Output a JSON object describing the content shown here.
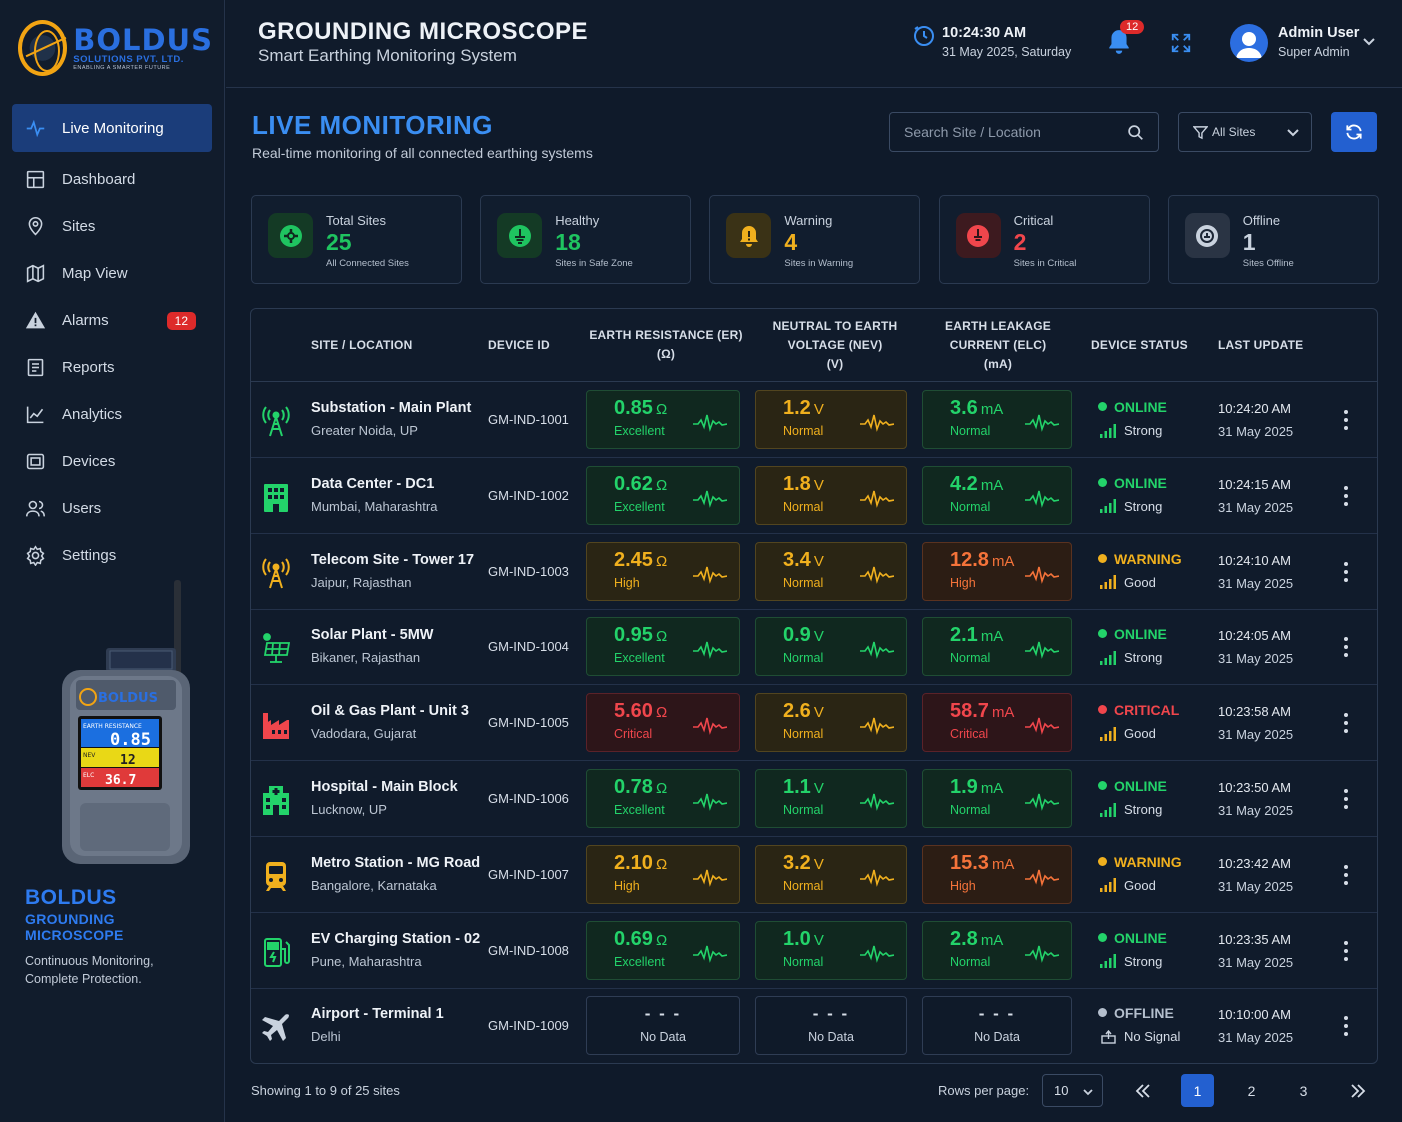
{
  "brand": {
    "name": "BOLDUS",
    "sub": "SOLUTIONS PVT. LTD.",
    "tagline": "ENABLING A SMARTER FUTURE"
  },
  "header": {
    "title": "GROUNDING MICROSCOPE",
    "subtitle": "Smart Earthing Monitoring System",
    "time": "10:24:30 AM",
    "date": "31 May 2025, Saturday",
    "notif_count": "12",
    "user_name": "Admin User",
    "user_role": "Super Admin"
  },
  "sidebar": {
    "items": [
      {
        "label": "Live Monitoring",
        "icon": "pulse-icon"
      },
      {
        "label": "Dashboard",
        "icon": "dashboard-icon"
      },
      {
        "label": "Sites",
        "icon": "location-pin-icon"
      },
      {
        "label": "Map View",
        "icon": "map-icon"
      },
      {
        "label": "Alarms",
        "icon": "alert-triangle-icon",
        "badge": "12"
      },
      {
        "label": "Reports",
        "icon": "report-icon"
      },
      {
        "label": "Analytics",
        "icon": "chart-icon"
      },
      {
        "label": "Devices",
        "icon": "device-icon"
      },
      {
        "label": "Users",
        "icon": "users-icon"
      },
      {
        "label": "Settings",
        "icon": "gear-icon"
      }
    ],
    "device_screen": {
      "brand": "BOLDUS",
      "line1": "EARTH RESISTANCE",
      "v1": "0.85",
      "line2": "NEV",
      "v2": "12",
      "line3": "ELC",
      "v3": "36.7"
    },
    "promo": {
      "title": "BOLDUS",
      "subtitle": "GROUNDING MICROSCOPE",
      "text1": "Continuous Monitoring,",
      "text2": "Complete Protection."
    }
  },
  "page": {
    "title": "LIVE MONITORING",
    "description": "Real-time monitoring of all connected earthing systems",
    "search_placeholder": "Search Site / Location",
    "filter_label": "All Sites"
  },
  "stats": [
    {
      "label": "Total Sites",
      "value": "25",
      "sub": "All Connected Sites",
      "color": "#1fc460",
      "icon": "plus-circle-icon"
    },
    {
      "label": "Healthy",
      "value": "18",
      "sub": "Sites in Safe Zone",
      "color": "#1fc460",
      "icon": "earth-symbol-icon"
    },
    {
      "label": "Warning",
      "value": "4",
      "sub": "Sites in Warning",
      "color": "#f0b01e",
      "icon": "warning-bell-icon"
    },
    {
      "label": "Critical",
      "value": "2",
      "sub": "Sites in Critical",
      "color": "#f0464c",
      "icon": "critical-icon"
    },
    {
      "label": "Offline",
      "value": "1",
      "sub": "Sites Offline",
      "color": "#c9d2de",
      "icon": "offline-icon"
    }
  ],
  "table": {
    "headers": {
      "site": "SITE / LOCATION",
      "device": "DEVICE ID",
      "er1": "EARTH RESISTANCE (ER)",
      "er2": "(Ω)",
      "nev1": "NEUTRAL TO EARTH",
      "nev2": "VOLTAGE (NEV)",
      "nev3": "(V)",
      "elc1": "EARTH LEAKAGE",
      "elc2": "CURRENT (ELC)",
      "elc3": "(mA)",
      "status": "DEVICE STATUS",
      "update": "LAST UPDATE"
    },
    "rows": [
      {
        "icon": "tower-icon",
        "icon_color": "#23d36a",
        "name": "Substation - Main Plant",
        "location": "Greater Noida, UP",
        "device": "GM-IND-1001",
        "er": {
          "v": "0.85",
          "u": "Ω",
          "l": "Excellent",
          "c": "g"
        },
        "nev": {
          "v": "1.2",
          "u": "V",
          "l": "Normal",
          "c": "y"
        },
        "elc": {
          "v": "3.6",
          "u": "mA",
          "l": "Normal",
          "c": "g"
        },
        "status": "ONLINE",
        "status_color": "#23d36a",
        "signal": "Strong",
        "time": "10:24:20 AM",
        "date": "31 May 2025"
      },
      {
        "icon": "building-icon",
        "icon_color": "#23d36a",
        "name": "Data Center - DC1",
        "location": "Mumbai, Maharashtra",
        "device": "GM-IND-1002",
        "er": {
          "v": "0.62",
          "u": "Ω",
          "l": "Excellent",
          "c": "g"
        },
        "nev": {
          "v": "1.8",
          "u": "V",
          "l": "Normal",
          "c": "y"
        },
        "elc": {
          "v": "4.2",
          "u": "mA",
          "l": "Normal",
          "c": "g"
        },
        "status": "ONLINE",
        "status_color": "#23d36a",
        "signal": "Strong",
        "time": "10:24:15 AM",
        "date": "31 May 2025"
      },
      {
        "icon": "tower-icon",
        "icon_color": "#f0b01e",
        "name": "Telecom Site - Tower 17",
        "location": "Jaipur, Rajasthan",
        "device": "GM-IND-1003",
        "er": {
          "v": "2.45",
          "u": "Ω",
          "l": "High",
          "c": "y"
        },
        "nev": {
          "v": "3.4",
          "u": "V",
          "l": "Normal",
          "c": "y"
        },
        "elc": {
          "v": "12.8",
          "u": "mA",
          "l": "High",
          "c": "o"
        },
        "status": "WARNING",
        "status_color": "#f0b01e",
        "signal": "Good",
        "time": "10:24:10 AM",
        "date": "31 May 2025"
      },
      {
        "icon": "solar-panel-icon",
        "icon_color": "#23d36a",
        "name": "Solar Plant - 5MW",
        "location": "Bikaner, Rajasthan",
        "device": "GM-IND-1004",
        "er": {
          "v": "0.95",
          "u": "Ω",
          "l": "Excellent",
          "c": "g"
        },
        "nev": {
          "v": "0.9",
          "u": "V",
          "l": "Normal",
          "c": "g"
        },
        "elc": {
          "v": "2.1",
          "u": "mA",
          "l": "Normal",
          "c": "g"
        },
        "status": "ONLINE",
        "status_color": "#23d36a",
        "signal": "Strong",
        "time": "10:24:05 AM",
        "date": "31 May 2025"
      },
      {
        "icon": "factory-icon",
        "icon_color": "#f0464c",
        "name": "Oil & Gas Plant - Unit 3",
        "location": "Vadodara, Gujarat",
        "device": "GM-IND-1005",
        "er": {
          "v": "5.60",
          "u": "Ω",
          "l": "Critical",
          "c": "r"
        },
        "nev": {
          "v": "2.6",
          "u": "V",
          "l": "Normal",
          "c": "y"
        },
        "elc": {
          "v": "58.7",
          "u": "mA",
          "l": "Critical",
          "c": "r"
        },
        "status": "CRITICAL",
        "status_color": "#f0464c",
        "signal": "Good",
        "time": "10:23:58 AM",
        "date": "31 May 2025"
      },
      {
        "icon": "hospital-icon",
        "icon_color": "#23d36a",
        "name": "Hospital - Main Block",
        "location": "Lucknow, UP",
        "device": "GM-IND-1006",
        "er": {
          "v": "0.78",
          "u": "Ω",
          "l": "Excellent",
          "c": "g"
        },
        "nev": {
          "v": "1.1",
          "u": "V",
          "l": "Normal",
          "c": "g"
        },
        "elc": {
          "v": "1.9",
          "u": "mA",
          "l": "Normal",
          "c": "g"
        },
        "status": "ONLINE",
        "status_color": "#23d36a",
        "signal": "Strong",
        "time": "10:23:50 AM",
        "date": "31 May 2025"
      },
      {
        "icon": "train-icon",
        "icon_color": "#f0b01e",
        "name": "Metro Station - MG Road",
        "location": "Bangalore, Karnataka",
        "device": "GM-IND-1007",
        "er": {
          "v": "2.10",
          "u": "Ω",
          "l": "High",
          "c": "y"
        },
        "nev": {
          "v": "3.2",
          "u": "V",
          "l": "Normal",
          "c": "y"
        },
        "elc": {
          "v": "15.3",
          "u": "mA",
          "l": "High",
          "c": "o"
        },
        "status": "WARNING",
        "status_color": "#f0b01e",
        "signal": "Good",
        "time": "10:23:42 AM",
        "date": "31 May 2025"
      },
      {
        "icon": "ev-charger-icon",
        "icon_color": "#23d36a",
        "name": "EV Charging Station - 02",
        "location": "Pune, Maharashtra",
        "device": "GM-IND-1008",
        "er": {
          "v": "0.69",
          "u": "Ω",
          "l": "Excellent",
          "c": "g"
        },
        "nev": {
          "v": "1.0",
          "u": "V",
          "l": "Normal",
          "c": "g"
        },
        "elc": {
          "v": "2.8",
          "u": "mA",
          "l": "Normal",
          "c": "g"
        },
        "status": "ONLINE",
        "status_color": "#23d36a",
        "signal": "Strong",
        "time": "10:23:35 AM",
        "date": "31 May 2025"
      },
      {
        "icon": "airplane-icon",
        "icon_color": "#c9d2de",
        "name": "Airport - Terminal 1",
        "location": "Delhi",
        "device": "GM-IND-1009",
        "er": {
          "v": "- - -",
          "l": "No Data",
          "c": "n"
        },
        "nev": {
          "v": "- - -",
          "l": "No Data",
          "c": "n"
        },
        "elc": {
          "v": "- - -",
          "l": "No Data",
          "c": "n"
        },
        "status": "OFFLINE",
        "status_color": "#b4bfcd",
        "signal": "No Signal",
        "time": "10:10:00 AM",
        "date": "31 May 2025"
      }
    ]
  },
  "footer": {
    "showing": "Showing 1 to 9 of 25 sites",
    "rows_per_page_label": "Rows per page:",
    "rows_per_page": "10",
    "pages": [
      "1",
      "2",
      "3"
    ]
  }
}
